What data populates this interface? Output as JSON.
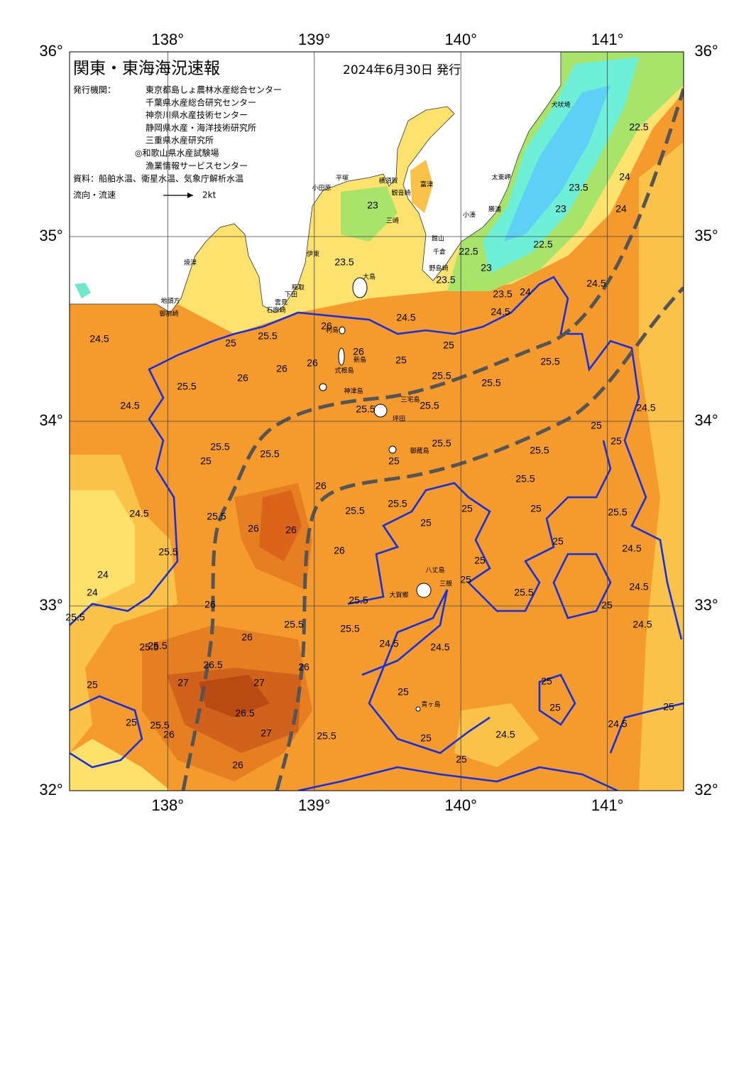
{
  "title": "関東・東海海況速報",
  "date": "2024年6月30日 発行",
  "issuer_label": "発行機関：",
  "issuers": [
    "東京都島しょ農林水産総合センター",
    "千葉県水産総合研究センター",
    "神奈川県水産技術センター",
    "静岡県水産・海洋技術研究所",
    "三重県水産研究所",
    "◎和歌山県水産試験場",
    "漁業情報サービスセンター"
  ],
  "source": "資料：船舶水温、衛星水温、気象庁解析水温",
  "legend": {
    "label": "流向・流速",
    "speed": "2kt"
  },
  "map": {
    "xlim": [
      137.33,
      141.52
    ],
    "ylim": [
      32,
      36
    ],
    "lon_ticks": [
      {
        "value": 138,
        "label": "138°"
      },
      {
        "value": 139,
        "label": "139°"
      },
      {
        "value": 140,
        "label": "140°"
      },
      {
        "value": 141,
        "label": "141°"
      }
    ],
    "lat_ticks": [
      {
        "value": 32,
        "label": "32°"
      },
      {
        "value": 33,
        "label": "33°"
      },
      {
        "value": 34,
        "label": "34°"
      },
      {
        "value": 35,
        "label": "35°"
      },
      {
        "value": 36,
        "label": "36°"
      }
    ]
  },
  "places": [
    "大島",
    "利島",
    "新島",
    "式根島",
    "神津島",
    "三宅島",
    "坪田",
    "御蔵島",
    "八丈島",
    "三根",
    "大賀郷",
    "青ヶ島",
    "犬吠埼",
    "太東岬",
    "勝浦",
    "小湊",
    "館山",
    "千倉",
    "野島崎",
    "富津",
    "横須賀",
    "観音崎",
    "平塚",
    "小田原",
    "三崎",
    "伊東",
    "稲取",
    "下田",
    "雲見",
    "石廊崎",
    "焼津",
    "地頭方",
    "御前崎"
  ],
  "contour_labels": [
    24.5,
    24.5,
    24.5,
    25.5,
    24,
    24,
    25.5,
    25.5,
    25.5,
    25.5,
    25,
    26,
    26,
    25.5,
    25,
    25.5,
    26,
    26,
    26,
    25.5,
    26,
    26,
    26,
    25.5,
    25.5,
    25.5,
    25.5,
    25.5,
    25.5,
    25.5,
    25.5,
    24.5,
    24.5,
    24.5,
    24.5,
    25,
    25,
    25,
    25,
    25,
    25,
    25,
    25,
    25.5,
    25,
    25.5,
    25.5,
    24.5,
    24.5,
    25,
    25,
    25,
    24.5,
    25,
    25,
    24.5,
    25,
    25.5,
    26,
    25.5,
    26,
    26,
    25.5,
    27,
    26.5,
    27,
    26.5,
    27,
    26,
    26,
    25.5,
    25,
    25,
    24.5,
    24.5,
    25,
    24,
    23.5,
    22.5,
    23,
    23.5,
    24,
    24.5,
    24,
    22.5,
    22.5,
    23,
    23.5,
    23.5,
    23,
    25.5,
    25,
    25.5,
    25.5,
    25,
    26
  ]
}
